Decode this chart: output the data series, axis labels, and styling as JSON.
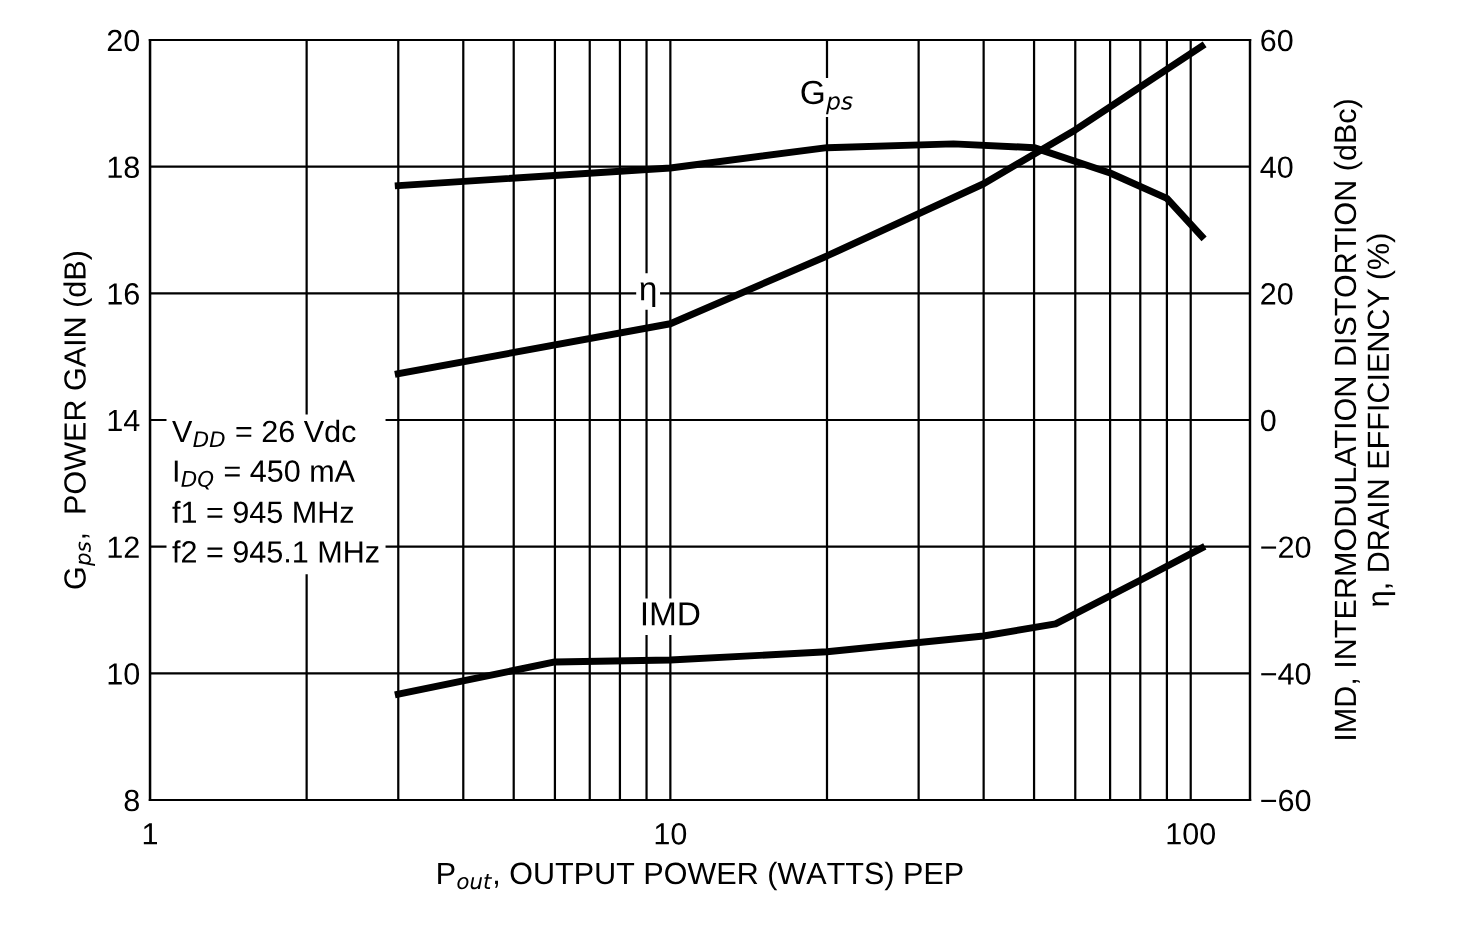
{
  "chart_data": {
    "type": "line",
    "xlabel": "P$_{out}$, OUTPUT POWER (WATTS) PEP",
    "ylabel": "G$_{ps}$,  POWER GAIN (dB)",
    "y2label": "IMD, INTERMODULATION DISTORTION (dBc)\nη, DRAIN EFFICIENCY (%)",
    "log": "x",
    "grid": true,
    "legend": false,
    "marker": "none",
    "line_style": "solid",
    "xlim": [
      1,
      130
    ],
    "xticks": [
      1,
      {
        "value": 2,
        "label": null
      },
      {
        "value": 3,
        "label": null
      },
      {
        "value": 4,
        "label": null
      },
      {
        "value": 5,
        "label": null
      },
      {
        "value": 6,
        "label": null
      },
      {
        "value": 7,
        "label": null
      },
      {
        "value": 8,
        "label": null
      },
      {
        "value": 9,
        "label": null
      },
      10,
      {
        "value": 20,
        "label": null
      },
      {
        "value": 30,
        "label": null
      },
      {
        "value": 40,
        "label": null
      },
      {
        "value": 50,
        "label": null
      },
      {
        "value": 60,
        "label": null
      },
      {
        "value": 70,
        "label": null
      },
      {
        "value": 80,
        "label": null
      },
      {
        "value": 90,
        "label": null
      },
      100
    ],
    "ylim": [
      8,
      20
    ],
    "yticks": [
      8,
      10,
      12,
      14,
      16,
      18,
      20
    ],
    "y2lim": [
      -60,
      60
    ],
    "y2ticks": [
      {
        "value": -60,
        "label": "−60"
      },
      {
        "value": -40,
        "label": "−40"
      },
      {
        "value": -20,
        "label": "−20"
      },
      0,
      20,
      40,
      60
    ],
    "series": [
      {
        "name": "G$_{ps}$",
        "color": "#000000",
        "x": [
          3,
          10,
          20,
          35,
          50,
          70,
          90,
          105
        ],
        "values": [
          17.7,
          17.98,
          18.3,
          18.36,
          18.3,
          17.9,
          17.5,
          16.9
        ]
      },
      {
        "name": "η",
        "color": "#000000",
        "axis": "y2",
        "x": [
          3,
          10,
          20,
          40,
          60,
          105
        ],
        "values": [
          7.3,
          15.2,
          25.9,
          37.3,
          45.8,
          59
        ]
      },
      {
        "name": "IMD",
        "color": "#000000",
        "axis": "y2",
        "x": [
          3,
          6,
          10,
          20,
          40,
          55,
          80,
          105
        ],
        "values": [
          -43.3,
          -38.2,
          -37.9,
          -36.6,
          -34.1,
          -32.2,
          -25.3,
          -20.2
        ]
      }
    ],
    "annotations": [
      "V$_{DD}$ = 26 Vdc\nI$_{DQ}$ = 450 mA\nf1 = 945 MHz\nf2 = 945.1 MHz"
    ]
  }
}
